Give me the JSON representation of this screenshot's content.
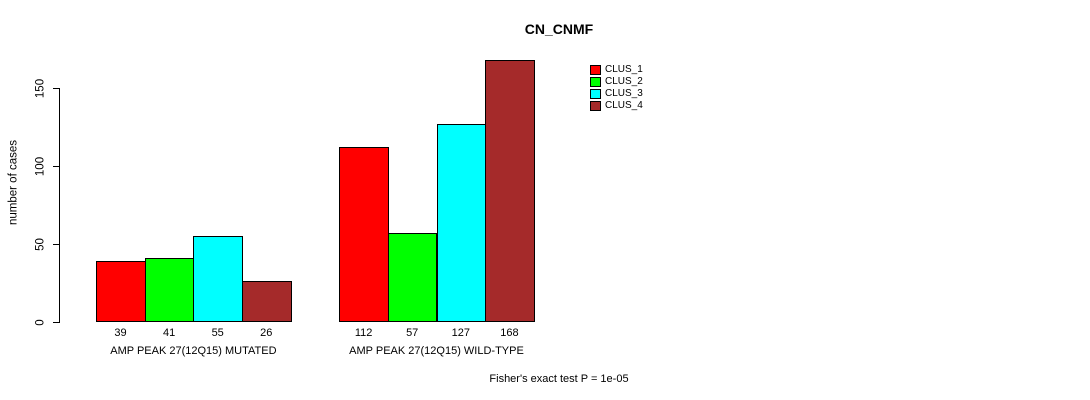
{
  "title": "CN_CNMF",
  "chart_data": {
    "type": "bar",
    "title": "CN_CNMF",
    "ylabel": "number of cases",
    "xlabel": "",
    "yticks": [
      0,
      50,
      100,
      150
    ],
    "ylim": [
      0,
      175
    ],
    "grid": false,
    "legend_position": "top-right-outside",
    "categories": [
      "AMP PEAK 27(12Q15) MUTATED",
      "AMP PEAK 27(12Q15) WILD-TYPE"
    ],
    "series": [
      {
        "name": "CLUS_1",
        "color": "#FF0000",
        "values": [
          39,
          112
        ]
      },
      {
        "name": "CLUS_2",
        "color": "#00FF00",
        "values": [
          41,
          57
        ]
      },
      {
        "name": "CLUS_3",
        "color": "#00FFFF",
        "values": [
          55,
          127
        ]
      },
      {
        "name": "CLUS_4",
        "color": "#A52A2A",
        "values": [
          26,
          168
        ]
      }
    ],
    "value_labels_shown": true,
    "footnote": "Fisher's exact test P = 1e-05"
  },
  "colors": {
    "background": "#FFFFFF",
    "axis": "#000000",
    "text": "#000000",
    "bar_border": "#000000"
  }
}
